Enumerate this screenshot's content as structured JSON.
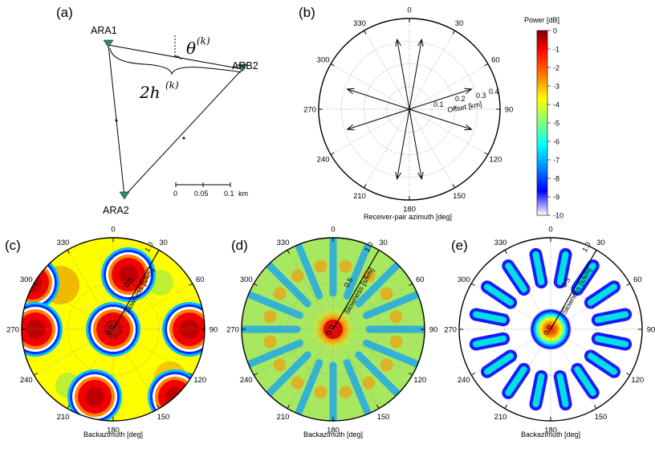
{
  "panels": {
    "a": {
      "label": "(a)",
      "stations": [
        "ARA1",
        "ARB2",
        "ARA2"
      ],
      "theta_label": "θ",
      "theta_sup": "(k)",
      "h_label": "2h",
      "h_sup": "(k)",
      "scale_ticks": [
        "0",
        "0.05",
        "0.1"
      ],
      "scale_unit": "km"
    },
    "b": {
      "label": "(b)",
      "xlabel": "Receiver-pair azimuth [deg]",
      "radial_label": "Offset [km]",
      "radial_ticks": [
        "0.1",
        "0.2",
        "0.3",
        "0.4"
      ],
      "arrow_azimuths": [
        -10,
        10,
        72,
        108,
        170,
        190,
        252,
        288
      ],
      "arrow_lengths": [
        0.78,
        0.78,
        0.72,
        0.72,
        0.78,
        0.78,
        0.72,
        0.72
      ]
    },
    "c": {
      "label": "(c)",
      "xlabel": "Backazimuth [deg]",
      "radial_label": "Slowness [s/km]",
      "radial_ticks": [
        "0.5",
        "1.0"
      ],
      "center_tick": "0.0"
    },
    "d": {
      "label": "(d)",
      "xlabel": "Backazimuth [deg]",
      "radial_label": "Slowness [s/km]",
      "radial_ticks": [
        "0.5",
        "1.0"
      ],
      "center_tick": "0.0"
    },
    "e": {
      "label": "(e)",
      "xlabel": "Backazimuth [deg]",
      "radial_label": "Slowness [s/km]",
      "radial_ticks": [
        "0.5",
        "1.0"
      ],
      "center_tick": "0.0"
    }
  },
  "angle_ticks": [
    "0",
    "30",
    "60",
    "90",
    "120",
    "150",
    "180",
    "210",
    "240",
    "270",
    "300",
    "330"
  ],
  "colorbar": {
    "title": "Power [dB]",
    "ticks": [
      "0",
      "-1",
      "-2",
      "-3",
      "-4",
      "-5",
      "-6",
      "-7",
      "-8",
      "-9",
      "-10"
    ],
    "colors": [
      "#7f0000",
      "#ff0000",
      "#ff8000",
      "#ffff00",
      "#80ff80",
      "#00ffff",
      "#0080ff",
      "#0000ff",
      "#ffffff"
    ]
  }
}
